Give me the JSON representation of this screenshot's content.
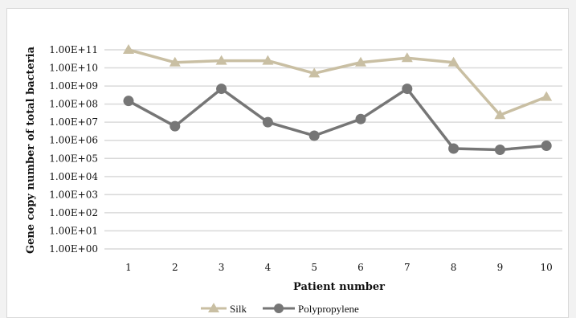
{
  "chart_data": {
    "type": "line",
    "title": "",
    "xlabel": "Patient number",
    "ylabel": "Gene copy number of total bacteria",
    "y_scale": "log10",
    "ylim": [
      1,
      100000000000
    ],
    "y_tick_labels": [
      "1.00E+00",
      "1.00E+01",
      "1.00E+02",
      "1.00E+03",
      "1.00E+04",
      "1.00E+05",
      "1.00E+06",
      "1.00E+07",
      "1.00E+08",
      "1.00E+09",
      "1.00E+10",
      "1.00E+11"
    ],
    "categories": [
      "1",
      "2",
      "3",
      "4",
      "5",
      "6",
      "7",
      "8",
      "9",
      "10"
    ],
    "grid": true,
    "legend_position": "bottom",
    "series": [
      {
        "name": "Silk",
        "color": "#c9bfa3",
        "marker": "triangle",
        "values": [
          100000000000,
          20000000000,
          25000000000,
          25000000000,
          5000000000,
          20000000000,
          35000000000,
          20000000000,
          25000000,
          250000000
        ]
      },
      {
        "name": "Polypropylene",
        "color": "#767676",
        "marker": "circle",
        "values": [
          150000000,
          6000000,
          700000000,
          10000000,
          1800000,
          15000000,
          700000000,
          350000,
          300000,
          500000
        ]
      }
    ]
  }
}
